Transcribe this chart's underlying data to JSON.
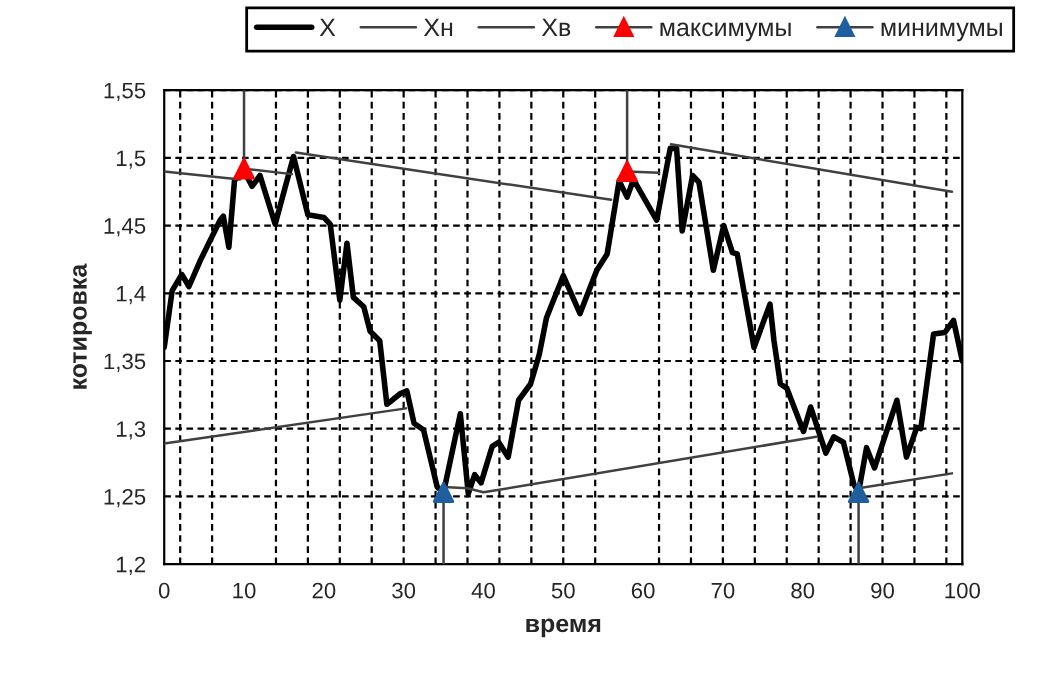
{
  "chart_data": {
    "type": "line",
    "xlabel": "время",
    "ylabel": "котировка",
    "xlim": [
      0,
      100
    ],
    "xticks": [
      0,
      10,
      20,
      30,
      40,
      50,
      60,
      70,
      80,
      90,
      100
    ],
    "ylim": [
      1.2,
      1.55
    ],
    "yticks": [
      {
        "value": 1.2,
        "label": "1,2"
      },
      {
        "value": 1.25,
        "label": "1,25"
      },
      {
        "value": 1.3,
        "label": "1,3"
      },
      {
        "value": 1.35,
        "label": "1,35"
      },
      {
        "value": 1.4,
        "label": "1,4"
      },
      {
        "value": 1.45,
        "label": "1,45"
      },
      {
        "value": 1.5,
        "label": "1,5"
      },
      {
        "value": 1.55,
        "label": "1,55"
      }
    ],
    "grid": "y",
    "legend": "top right",
    "ref_lines": [
      {
        "axis": "x",
        "value": 2,
        "line_style": "dashed",
        "color": "#000000"
      },
      {
        "axis": "x",
        "value": 6,
        "line_style": "dashed",
        "color": "#000000"
      },
      {
        "axis": "x",
        "value": 14,
        "line_style": "dashed",
        "color": "#000000"
      },
      {
        "axis": "x",
        "value": 18,
        "line_style": "dashed",
        "color": "#000000"
      },
      {
        "axis": "x",
        "value": 22,
        "line_style": "dashed",
        "color": "#000000"
      },
      {
        "axis": "x",
        "value": 26,
        "line_style": "dashed",
        "color": "#000000"
      },
      {
        "axis": "x",
        "value": 30,
        "line_style": "dashed",
        "color": "#000000"
      },
      {
        "axis": "x",
        "value": 34,
        "line_style": "dashed",
        "color": "#000000"
      },
      {
        "axis": "x",
        "value": 38,
        "line_style": "dashed",
        "color": "#000000"
      },
      {
        "axis": "x",
        "value": 42,
        "line_style": "dashed",
        "color": "#000000"
      },
      {
        "axis": "x",
        "value": 46,
        "line_style": "dashed",
        "color": "#000000"
      },
      {
        "axis": "x",
        "value": 50,
        "line_style": "dashed",
        "color": "#000000"
      },
      {
        "axis": "x",
        "value": 54,
        "line_style": "dashed",
        "color": "#000000"
      },
      {
        "axis": "x",
        "value": 62,
        "line_style": "dashed",
        "color": "#000000"
      },
      {
        "axis": "x",
        "value": 66,
        "line_style": "dashed",
        "color": "#000000"
      },
      {
        "axis": "x",
        "value": 70,
        "line_style": "dashed",
        "color": "#000000"
      },
      {
        "axis": "x",
        "value": 74,
        "line_style": "dashed",
        "color": "#000000"
      },
      {
        "axis": "x",
        "value": 78,
        "line_style": "dashed",
        "color": "#000000"
      },
      {
        "axis": "x",
        "value": 82,
        "line_style": "dashed",
        "color": "#000000"
      },
      {
        "axis": "x",
        "value": 86,
        "line_style": "dashed",
        "color": "#000000"
      },
      {
        "axis": "x",
        "value": 90,
        "line_style": "dashed",
        "color": "#000000"
      },
      {
        "axis": "x",
        "value": 94,
        "line_style": "dashed",
        "color": "#000000"
      },
      {
        "axis": "x",
        "value": 98,
        "line_style": "dashed",
        "color": "#000000"
      }
    ],
    "series": [
      {
        "name": "X",
        "color": "#000000",
        "line_style": "solid",
        "marker": "none",
        "x": [
          0,
          1,
          2.2,
          3.1,
          4.5,
          7,
          7.4,
          8.1,
          8.8,
          9.5,
          10.3,
          11,
          12,
          13.9,
          16.2,
          18,
          20,
          20.8,
          22,
          22.9,
          23.7,
          25,
          25.8,
          27,
          27.9,
          29.6,
          30.4,
          31.3,
          32.5,
          34.2,
          35,
          37.1,
          38.1,
          38.9,
          39.7,
          41.1,
          41.9,
          43.1,
          44.4,
          45.9,
          47,
          47.9,
          50,
          52.1,
          54.2,
          55.5,
          57,
          58,
          58.8,
          61.7,
          63.4,
          64.2,
          64.9,
          66.2,
          67,
          68.8,
          70.1,
          71.2,
          71.8,
          73.9,
          75.9,
          76.4,
          77.2,
          78,
          80.1,
          81,
          82.9,
          83.9,
          85.1,
          86.4,
          87,
          88,
          89,
          91.8,
          93,
          94.3,
          94.8,
          96.4,
          97.8,
          98.9,
          100
        ],
        "values": [
          1.36,
          1.402,
          1.414,
          1.405,
          1.424,
          1.454,
          1.457,
          1.434,
          1.483,
          1.489,
          1.487,
          1.479,
          1.487,
          1.451,
          1.501,
          1.458,
          1.456,
          1.451,
          1.395,
          1.437,
          1.397,
          1.39,
          1.372,
          1.365,
          1.318,
          1.326,
          1.328,
          1.304,
          1.299,
          1.257,
          1.253,
          1.311,
          1.252,
          1.266,
          1.26,
          1.287,
          1.29,
          1.279,
          1.321,
          1.333,
          1.355,
          1.382,
          1.413,
          1.385,
          1.417,
          1.429,
          1.483,
          1.471,
          1.484,
          1.454,
          1.507,
          1.507,
          1.446,
          1.487,
          1.482,
          1.417,
          1.45,
          1.43,
          1.429,
          1.36,
          1.392,
          1.365,
          1.333,
          1.33,
          1.298,
          1.316,
          1.282,
          1.294,
          1.29,
          1.259,
          1.253,
          1.286,
          1.271,
          1.321,
          1.279,
          1.301,
          1.3,
          1.37,
          1.371,
          1.38,
          1.35
        ]
      },
      {
        "name": "Xн",
        "color": "#404040",
        "line_style": "solid",
        "marker": "none",
        "x": [
          0,
          30.3,
          null,
          35,
          38,
          40,
          81.7,
          null,
          87,
          98.7
        ],
        "values": [
          1.289,
          1.315,
          null,
          1.257,
          1.256,
          1.253,
          1.294,
          null,
          1.256,
          1.267
        ]
      },
      {
        "name": "Xв",
        "color": "#404040",
        "line_style": "solid",
        "marker": "none",
        "x": [
          0,
          9.5,
          10,
          16,
          null,
          16.5,
          56,
          null,
          58,
          62,
          null,
          63.5,
          98.7
        ],
        "values": [
          1.49,
          1.484,
          1.492,
          1.488,
          null,
          1.504,
          1.469,
          null,
          1.49,
          1.489,
          null,
          1.51,
          1.475
        ]
      },
      {
        "color": "#404040",
        "line_style": "solid",
        "marker": "none",
        "x": [
          10,
          10
        ],
        "values": [
          1.492,
          1.55
        ]
      },
      {
        "color": "#404040",
        "line_style": "solid",
        "marker": "none",
        "x": [
          58,
          58
        ],
        "values": [
          1.49,
          1.55
        ]
      },
      {
        "color": "#404040",
        "line_style": "solid",
        "marker": "none",
        "x": [
          35,
          35
        ],
        "values": [
          1.2,
          1.253
        ]
      },
      {
        "color": "#404040",
        "line_style": "solid",
        "marker": "none",
        "x": [
          87,
          87
        ],
        "values": [
          1.2,
          1.253
        ]
      },
      {
        "name": "максимумы",
        "type": "scatter",
        "color": "#ff0000",
        "marker": "triangle",
        "x": [
          10,
          58
        ],
        "values": [
          1.492,
          1.49
        ]
      },
      {
        "name": "минимумы",
        "type": "scatter",
        "color": "#1f5f9f",
        "marker": "triangle",
        "x": [
          35,
          87
        ],
        "values": [
          1.253,
          1.253
        ]
      }
    ]
  }
}
